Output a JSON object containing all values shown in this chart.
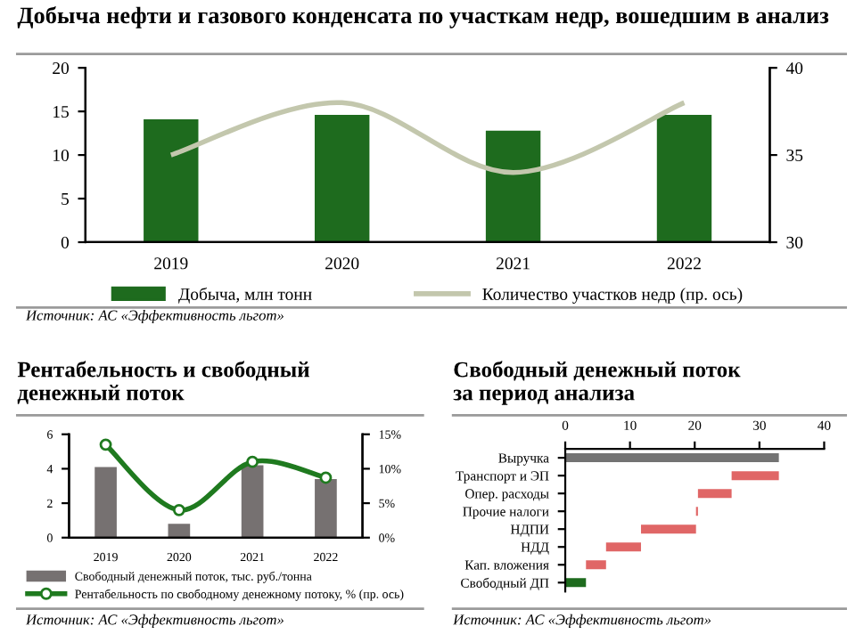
{
  "chart_data": [
    {
      "type": "bar",
      "title": "Добыча нефти и газового конденсата по участкам недр, вошедшим в анализ",
      "categories": [
        "2019",
        "2020",
        "2021",
        "2022"
      ],
      "series": [
        {
          "name": "Добыча, млн тонн",
          "color": "#1e6b1e",
          "values": [
            14.1,
            14.6,
            12.8,
            14.6
          ]
        },
        {
          "name": "Количество участков недр (пр. ось)",
          "type": "line",
          "axis": "y2",
          "color": "#c3c7ad",
          "values": [
            35,
            38,
            34,
            38
          ]
        }
      ],
      "ylim": [
        0,
        20
      ],
      "yticks": [
        0,
        5,
        10,
        15,
        20
      ],
      "y2lim": [
        30,
        40
      ],
      "y2ticks": [
        30,
        35,
        40
      ],
      "legend": "bottom",
      "grid": false,
      "annotations": [
        "Источник: АС «Эффективность льгот»"
      ]
    },
    {
      "type": "bar",
      "title": "Рентабельность и свободный\nденежный поток",
      "categories": [
        "2019",
        "2020",
        "2021",
        "2022"
      ],
      "series": [
        {
          "name": "Свободный денежный поток, тыс. руб./тонна",
          "color": "#767171",
          "values": [
            4.1,
            0.8,
            4.2,
            3.4
          ]
        },
        {
          "name": "Рентабельность по свободному денежному потоку, % (пр. ось)",
          "type": "line",
          "axis": "y2",
          "marker": "circle",
          "color": "#1f7a1f",
          "values": [
            13.5,
            4,
            11,
            8.7
          ]
        }
      ],
      "ylim": [
        0,
        6
      ],
      "yticks": [
        0,
        2,
        4,
        6
      ],
      "y2lim": [
        0,
        15
      ],
      "y2ticks": [
        {
          "value": 0,
          "label": "0%"
        },
        {
          "value": 5,
          "label": "5%"
        },
        {
          "value": 10,
          "label": "10%"
        },
        {
          "value": 15,
          "label": "15%"
        }
      ],
      "legend": "bottom",
      "grid": false,
      "annotations": [
        "Источник: АС «Эффективность льгот»"
      ]
    },
    {
      "type": "bar",
      "orientation": "horizontal",
      "title": "Свободный денежный поток\nза период анализа",
      "categories": [
        "Выручка",
        "Транспорт и ЭП",
        "Опер. расходы",
        "Прочие налоги",
        "НДПИ",
        "НДД",
        "Кап. вложения",
        "Свободный ДП"
      ],
      "values": [
        33,
        7.3,
        5.2,
        0.3,
        8.5,
        5.4,
        3.1,
        3.2
      ],
      "base": [
        0,
        25.7,
        20.5,
        20.2,
        11.7,
        6.3,
        3.2,
        0
      ],
      "colors": [
        "#737373",
        "#e06666",
        "#e06666",
        "#e06666",
        "#e06666",
        "#e06666",
        "#e06666",
        "#1e6b1e"
      ],
      "xlim": [
        0,
        40
      ],
      "xticks": [
        0,
        10,
        20,
        30,
        40
      ],
      "grid": false,
      "annotations": [
        "Источник: АС «Эффективность льгот»"
      ]
    }
  ]
}
